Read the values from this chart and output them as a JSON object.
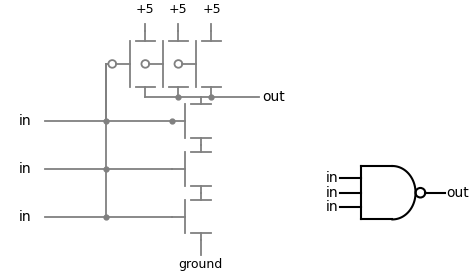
{
  "background_color": "#ffffff",
  "line_color": "#808080",
  "black_color": "#000000",
  "figsize": [
    4.74,
    2.74
  ],
  "dpi": 100,
  "vdd_labels": [
    "+5",
    "+5",
    "+5"
  ],
  "out_label": "out",
  "ground_label": "ground",
  "in_labels": [
    "in",
    "in",
    "in"
  ],
  "nand_in_labels": [
    "in",
    "in",
    "in"
  ],
  "nand_out_label": "out"
}
